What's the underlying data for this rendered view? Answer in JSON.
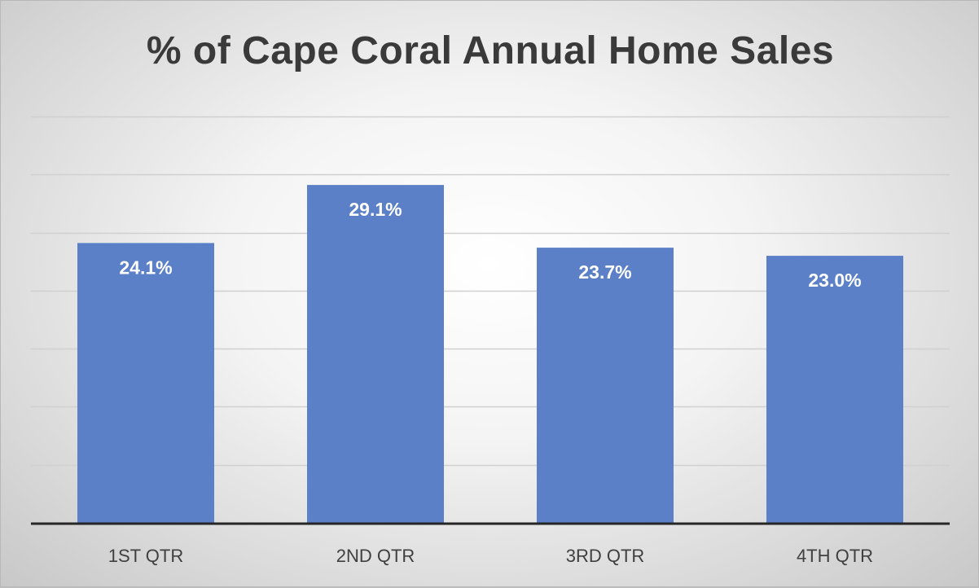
{
  "chart_data": {
    "type": "bar",
    "title": "% of Cape Coral Annual Home Sales",
    "categories": [
      "1ST QTR",
      "2ND QTR",
      "3RD QTR",
      "4TH QTR"
    ],
    "values": [
      24.1,
      29.1,
      23.7,
      23.0
    ],
    "data_labels": [
      "24.1%",
      "29.1%",
      "23.7%",
      "23.0%"
    ],
    "xlabel": "",
    "ylabel": "",
    "ylim": [
      0,
      35
    ],
    "y_gridlines": [
      5,
      10,
      15,
      20,
      25,
      30,
      35
    ],
    "grid": true,
    "y_tick_labels_shown": false,
    "bar_color": "#5b80c8",
    "data_label_color": "#ffffff",
    "axis_color": "#262626",
    "gridline_color": "#d0d0d0"
  }
}
